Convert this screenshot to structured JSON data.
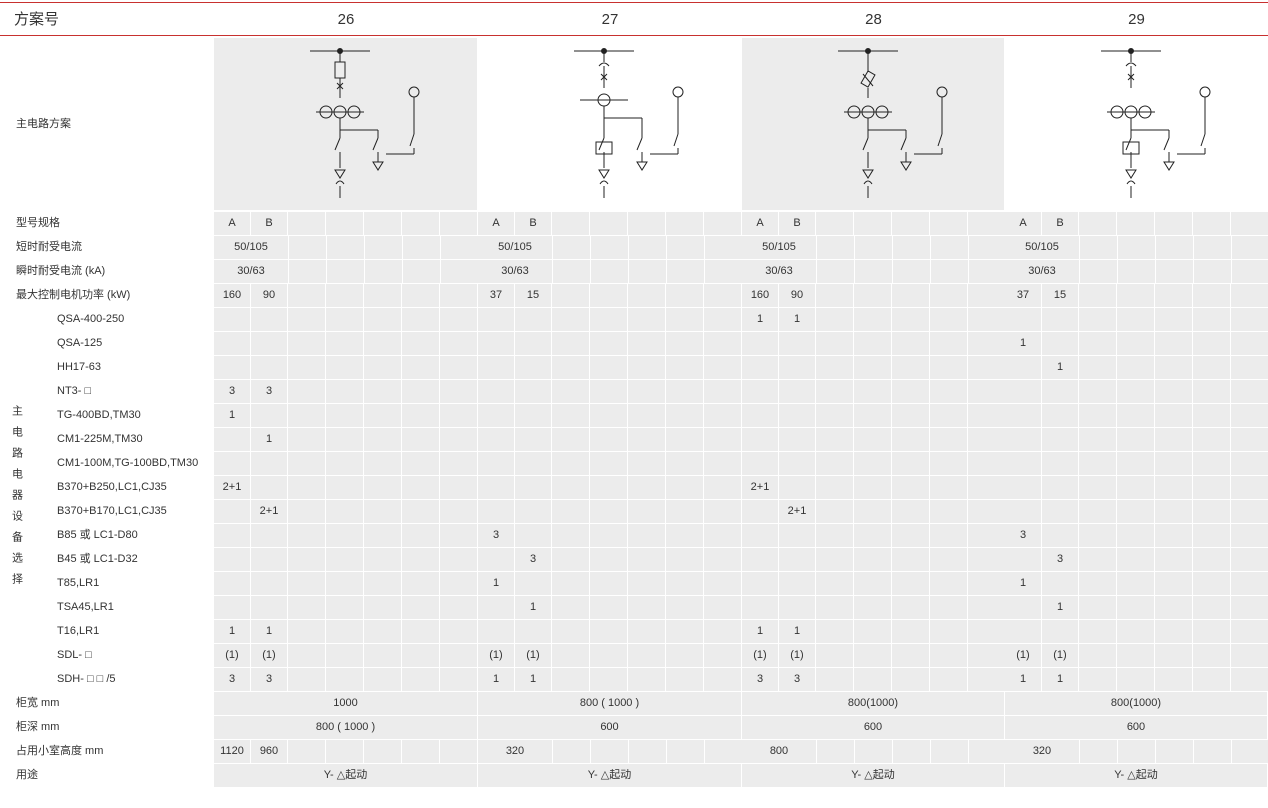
{
  "header": {
    "label": "方案号",
    "schemes": [
      "26",
      "27",
      "28",
      "29"
    ]
  },
  "circuit_row_label": "主电路方案",
  "circuit_icons": [
    "circuit-diagram-26-icon",
    "circuit-diagram-27-icon",
    "circuit-diagram-28-icon",
    "circuit-diagram-29-icon"
  ],
  "model_row": {
    "label": "型号规格",
    "a": "A",
    "b": "B"
  },
  "short_time_current": {
    "label": "短时耐受电流",
    "values": [
      "50/105",
      "50/105",
      "50/105",
      "50/105"
    ]
  },
  "peak_current": {
    "label": "瞬时耐受电流 (kA)",
    "values": [
      "30/63",
      "30/63",
      "30/63",
      "30/63"
    ]
  },
  "max_motor_power": {
    "label": "最大控制电机功率 (kW)",
    "values": [
      [
        "160",
        "90"
      ],
      [
        "37",
        "15"
      ],
      [
        "160",
        "90"
      ],
      [
        "37",
        "15"
      ]
    ]
  },
  "equipment_group_label": "主电路电器设备选择",
  "equipment": [
    {
      "name": "QSA-400-250",
      "values": [
        [
          "",
          ""
        ],
        [
          "",
          ""
        ],
        [
          "1",
          "1"
        ],
        [
          "",
          ""
        ]
      ]
    },
    {
      "name": "QSA-125",
      "values": [
        [
          "",
          ""
        ],
        [
          "",
          ""
        ],
        [
          "",
          ""
        ],
        [
          "1",
          ""
        ]
      ]
    },
    {
      "name": "HH17-63",
      "values": [
        [
          "",
          ""
        ],
        [
          "",
          ""
        ],
        [
          "",
          ""
        ],
        [
          "",
          "1"
        ]
      ]
    },
    {
      "name": "NT3- □",
      "values": [
        [
          "3",
          "3"
        ],
        [
          "",
          ""
        ],
        [
          "",
          ""
        ],
        [
          "",
          ""
        ]
      ]
    },
    {
      "name": "TG-400BD,TM30",
      "values": [
        [
          "1",
          ""
        ],
        [
          "",
          ""
        ],
        [
          "",
          ""
        ],
        [
          "",
          ""
        ]
      ]
    },
    {
      "name": "CM1-225M,TM30",
      "values": [
        [
          "",
          "1"
        ],
        [
          "",
          ""
        ],
        [
          "",
          ""
        ],
        [
          "",
          ""
        ]
      ]
    },
    {
      "name": "CM1-100M,TG-100BD,TM30",
      "values": [
        [
          "",
          ""
        ],
        [
          "",
          ""
        ],
        [
          "",
          ""
        ],
        [
          "",
          ""
        ]
      ]
    },
    {
      "name": "B370+B250,LC1,CJ35",
      "values": [
        [
          "2+1",
          ""
        ],
        [
          "",
          ""
        ],
        [
          "2+1",
          ""
        ],
        [
          "",
          ""
        ]
      ]
    },
    {
      "name": "B370+B170,LC1,CJ35",
      "values": [
        [
          "",
          "2+1"
        ],
        [
          "",
          ""
        ],
        [
          "",
          "2+1"
        ],
        [
          "",
          ""
        ]
      ]
    },
    {
      "name": "B85 或 LC1-D80",
      "values": [
        [
          "",
          ""
        ],
        [
          "3",
          ""
        ],
        [
          "",
          ""
        ],
        [
          "3",
          ""
        ]
      ]
    },
    {
      "name": "B45 或 LC1-D32",
      "values": [
        [
          "",
          ""
        ],
        [
          "",
          "3"
        ],
        [
          "",
          ""
        ],
        [
          "",
          "3"
        ]
      ]
    },
    {
      "name": "T85,LR1",
      "values": [
        [
          "",
          ""
        ],
        [
          "1",
          ""
        ],
        [
          "",
          ""
        ],
        [
          "1",
          ""
        ]
      ]
    },
    {
      "name": "TSA45,LR1",
      "values": [
        [
          "",
          ""
        ],
        [
          "",
          "1"
        ],
        [
          "",
          ""
        ],
        [
          "",
          "1"
        ]
      ]
    },
    {
      "name": "T16,LR1",
      "values": [
        [
          "1",
          "1"
        ],
        [
          "",
          ""
        ],
        [
          "1",
          "1"
        ],
        [
          "",
          ""
        ]
      ]
    },
    {
      "name": "SDL- □",
      "values": [
        [
          "(1)",
          "(1)"
        ],
        [
          "(1)",
          "(1)"
        ],
        [
          "(1)",
          "(1)"
        ],
        [
          "(1)",
          "(1)"
        ]
      ]
    },
    {
      "name": "SDH- □ □ /5",
      "values": [
        [
          "3",
          "3"
        ],
        [
          "1",
          "1"
        ],
        [
          "3",
          "3"
        ],
        [
          "1",
          "1"
        ]
      ]
    }
  ],
  "cabinet_width": {
    "label": "柜宽 mm",
    "values": [
      "1000",
      "800 ( 1000 )",
      "800(1000)",
      "800(1000)"
    ]
  },
  "cabinet_depth": {
    "label": "柜深 mm",
    "values": [
      "800 ( 1000 )",
      "600",
      "600",
      "600"
    ]
  },
  "compartment_height": {
    "label": "占用小室高度 mm",
    "values": [
      [
        "1120",
        "960"
      ],
      [
        "320"
      ],
      [
        "800"
      ],
      [
        "320"
      ]
    ]
  },
  "usage": {
    "label": "用途",
    "values": [
      "Y- △起动",
      "Y- △起动",
      "Y- △起动",
      "Y- △起动"
    ]
  },
  "colors": {
    "header_rule": "#c8312f",
    "shade": "#ececec",
    "text": "#333333"
  }
}
